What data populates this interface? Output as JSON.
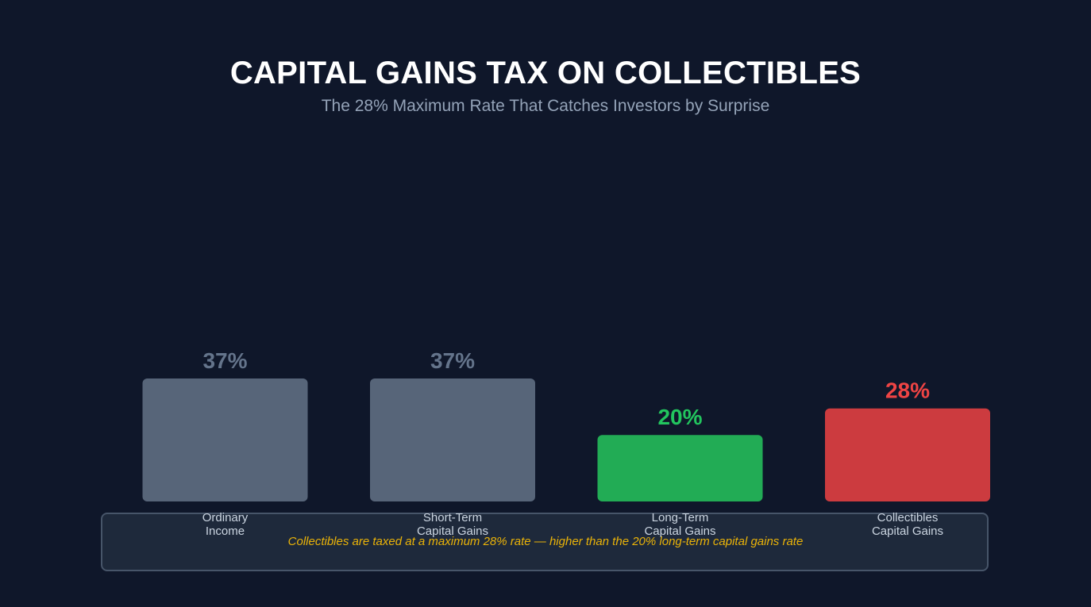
{
  "header": {
    "title": "CAPITAL GAINS TAX ON COLLECTIBLES",
    "subtitle": "The 28% Maximum Rate That Catches Investors by Surprise"
  },
  "note": {
    "text": "Collectibles are taxed at a maximum 28% rate — higher than the 20% long-term capital gains rate"
  },
  "colors": {
    "background": "#0f172a",
    "neutral_bar": "#576579",
    "neutral_label": "#64748b",
    "long_term_bar": "#22ac55",
    "long_term_label": "#22c55e",
    "collectibles_bar": "#cc3b3f",
    "collectibles_label": "#ef4444",
    "note_text": "#eab308"
  },
  "chart_data": {
    "type": "bar",
    "title": "CAPITAL GAINS TAX ON COLLECTIBLES",
    "subtitle": "The 28% Maximum Rate That Catches Investors by Surprise",
    "xlabel": "",
    "ylabel": "",
    "grid": false,
    "legend": "none",
    "categories": [
      [
        "Ordinary",
        "Income"
      ],
      [
        "Short-Term",
        "Capital Gains"
      ],
      [
        "Long-Term",
        "Capital Gains"
      ],
      [
        "Collectibles",
        "Capital Gains"
      ]
    ],
    "values": [
      37,
      37,
      20,
      28
    ],
    "value_labels": [
      "37%",
      "37%",
      "20%",
      "28%"
    ],
    "bar_colors": [
      "#576579",
      "#576579",
      "#22ac55",
      "#cc3b3f"
    ],
    "label_colors": [
      "#64748b",
      "#64748b",
      "#22c55e",
      "#ef4444"
    ]
  }
}
